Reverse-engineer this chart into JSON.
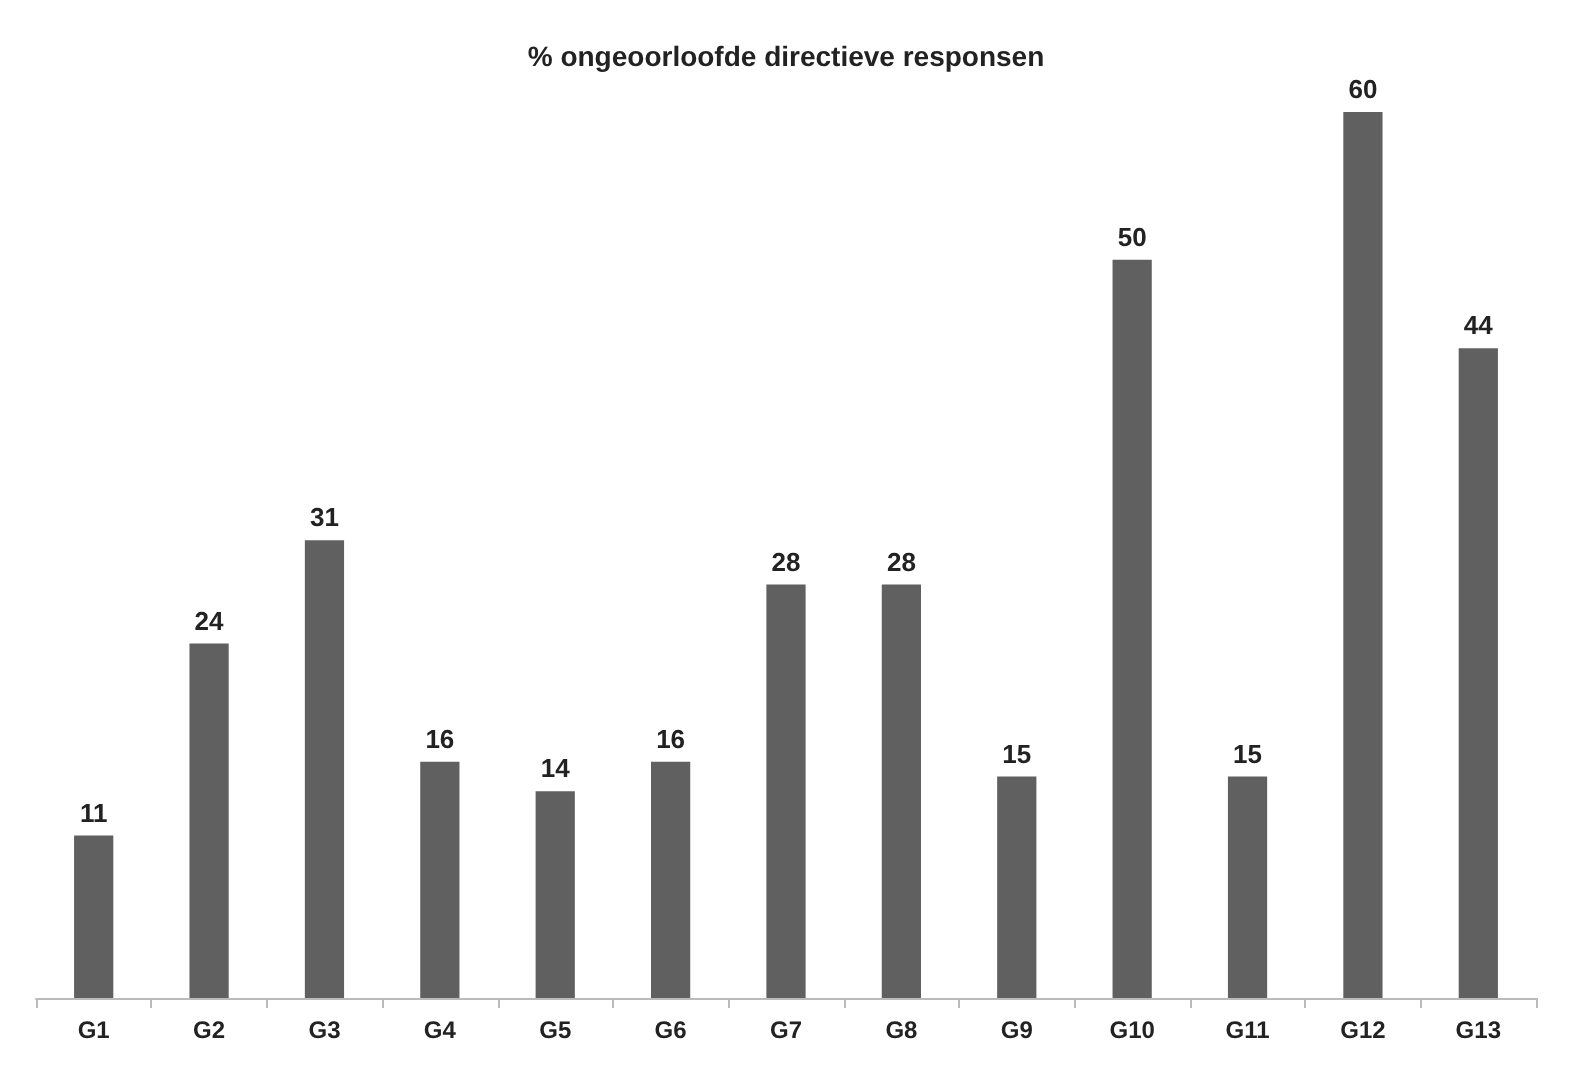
{
  "chart_data": {
    "type": "bar",
    "title": "% ongeoorloofde directieve responsen",
    "categories": [
      "G1",
      "G2",
      "G3",
      "G4",
      "G5",
      "G6",
      "G7",
      "G8",
      "G9",
      "G10",
      "G11",
      "G12",
      "G13"
    ],
    "values": [
      11,
      24,
      31,
      16,
      14,
      16,
      28,
      28,
      15,
      50,
      15,
      60,
      44
    ],
    "color": "#606060",
    "data_labels": true
  }
}
